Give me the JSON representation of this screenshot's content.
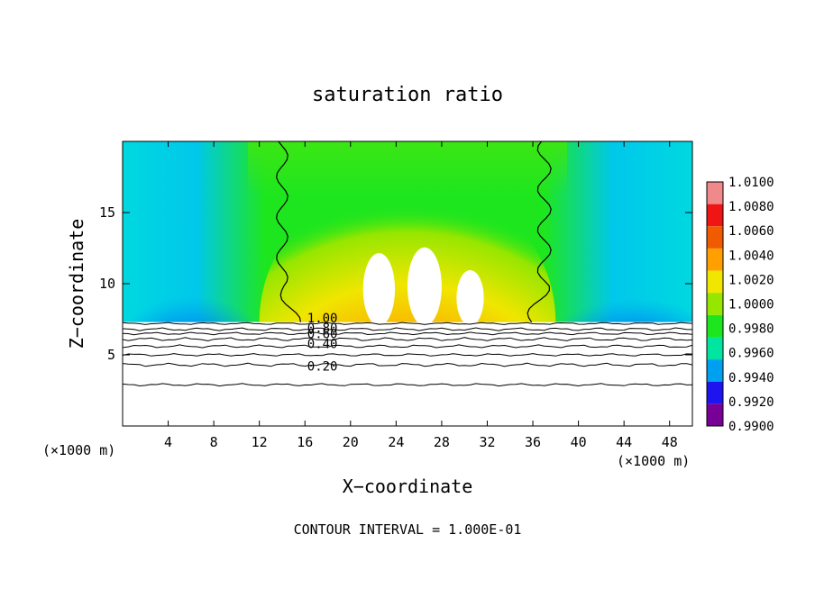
{
  "chart_data": {
    "type": "heatmap",
    "title": "saturation ratio",
    "xlabel": "X−coordinate",
    "ylabel": "Z−coordinate",
    "x_unit_left": "(×1000 m)",
    "x_unit_right": "(×1000 m)",
    "xlim": [
      0,
      50
    ],
    "ylim": [
      0,
      20
    ],
    "xticks": [
      4,
      8,
      12,
      16,
      20,
      24,
      28,
      32,
      36,
      40,
      44,
      48
    ],
    "yticks": [
      5,
      10,
      15
    ],
    "colorbar": {
      "levels": [
        "1.0100",
        "1.0080",
        "1.0060",
        "1.0040",
        "1.0020",
        "1.0000",
        "0.9980",
        "0.9960",
        "0.9940",
        "0.9920",
        "0.9900"
      ],
      "colors": [
        "#f08a8a",
        "#f01414",
        "#f05a00",
        "#ffa000",
        "#f0e600",
        "#96e600",
        "#1ee61e",
        "#00e6a0",
        "#00a0f0",
        "#1e14f0",
        "#780096"
      ]
    },
    "contour_labels": [
      "1.00",
      "0.80",
      "0.60",
      "0.40",
      "0.20"
    ],
    "contour_interval_text": "CONTOUR INTERVAL = 1.000E-01",
    "cloud_base_z": 7.3
  }
}
